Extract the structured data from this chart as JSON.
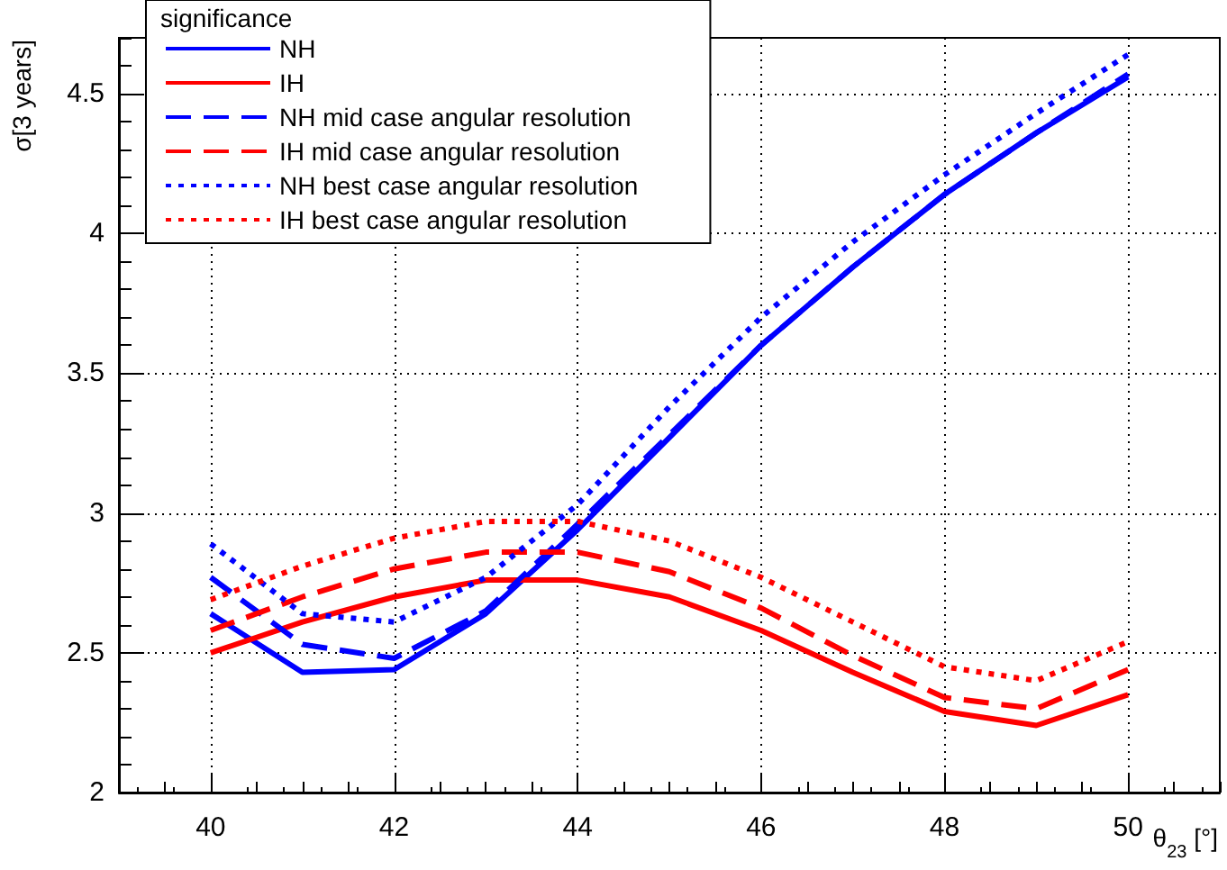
{
  "chart_data": {
    "type": "line",
    "xlabel": "θ$_{23}$ [°]",
    "ylabel": "σ[3 years]",
    "legend_title": "significance",
    "legend": "top left",
    "grid": true,
    "marker": "none",
    "x": [
      40,
      41,
      42,
      43,
      44,
      45,
      46,
      47,
      48,
      49,
      50
    ],
    "xlim": [
      39,
      51
    ],
    "xticks": [
      40,
      42,
      44,
      46,
      48,
      50
    ],
    "ylim": [
      2,
      4.7
    ],
    "yticks": [
      2,
      2.5,
      3,
      3.5,
      4,
      4.5
    ],
    "series": [
      {
        "name": "NH",
        "color": "#0000ff",
        "line_style": "solid",
        "values": [
          2.64,
          2.43,
          2.44,
          2.64,
          2.94,
          3.27,
          3.6,
          3.88,
          4.14,
          4.36,
          4.56
        ]
      },
      {
        "name": "IH",
        "color": "#ff0000",
        "line_style": "solid",
        "values": [
          2.5,
          2.61,
          2.7,
          2.76,
          2.76,
          2.7,
          2.58,
          2.43,
          2.29,
          2.24,
          2.35
        ]
      },
      {
        "name": "NH mid case angular resolution",
        "color": "#0000ff",
        "line_style": "dashed",
        "values": [
          2.77,
          2.53,
          2.48,
          2.65,
          2.96,
          3.28,
          3.6,
          3.88,
          4.14,
          4.36,
          4.57
        ]
      },
      {
        "name": "IH mid case angular resolution",
        "color": "#ff0000",
        "line_style": "dashed",
        "values": [
          2.58,
          2.7,
          2.8,
          2.86,
          2.86,
          2.79,
          2.66,
          2.49,
          2.34,
          2.3,
          2.44
        ]
      },
      {
        "name": "NH best case angular resolution",
        "color": "#0000ff",
        "line_style": "dotted",
        "values": [
          2.89,
          2.64,
          2.61,
          2.77,
          3.03,
          3.38,
          3.7,
          3.97,
          4.21,
          4.43,
          4.64
        ]
      },
      {
        "name": "IH best case angular resolution",
        "color": "#ff0000",
        "line_style": "dotted",
        "values": [
          2.69,
          2.81,
          2.91,
          2.97,
          2.97,
          2.9,
          2.77,
          2.61,
          2.45,
          2.4,
          2.54
        ]
      }
    ]
  }
}
